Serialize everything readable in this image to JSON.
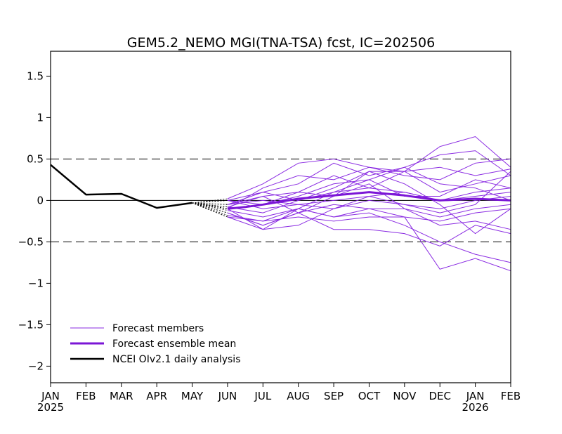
{
  "chart_data": {
    "type": "line",
    "title": "GEM5.2_NEMO MGI(TNA-TSA) fcst, IC=202506",
    "xlabel": "",
    "ylabel": "",
    "ylim": [
      -2.2,
      1.8
    ],
    "yticks": [
      -2,
      -1.5,
      -1,
      -0.5,
      0,
      0.5,
      1,
      1.5
    ],
    "ytick_labels": [
      "−2",
      "−1.5",
      "−1",
      "−0.5",
      "0",
      "0.5",
      "1",
      "1.5"
    ],
    "xlim": [
      0,
      13
    ],
    "x_categories": [
      "JAN",
      "FEB",
      "MAR",
      "APR",
      "MAY",
      "JUN",
      "JUL",
      "AUG",
      "SEP",
      "OCT",
      "NOV",
      "DEC",
      "JAN",
      "FEB"
    ],
    "x_year_labels": [
      {
        "index": 0,
        "label": "2025"
      },
      {
        "index": 12,
        "label": "2026"
      }
    ],
    "reference_lines": [
      {
        "y": 0.5,
        "style": "dashed"
      },
      {
        "y": 0,
        "style": "solid"
      },
      {
        "y": -0.5,
        "style": "dashed"
      }
    ],
    "grid": false,
    "legend_position": "bottom-left",
    "colors": {
      "members": "#8a2be2",
      "ensemble_mean": "#7b16d6",
      "analysis": "#000000"
    },
    "analysis": {
      "name": "NCEI OIv2.1 daily analysis",
      "x": [
        0,
        1,
        2,
        3,
        4
      ],
      "y": [
        0.43,
        0.07,
        0.08,
        -0.09,
        -0.03
      ]
    },
    "ensemble_mean": {
      "name": "Forecast ensemble mean",
      "x": [
        5,
        5.5,
        6,
        7,
        8,
        9,
        10,
        11,
        12,
        13
      ],
      "y": [
        -0.1,
        -0.08,
        -0.05,
        0.02,
        0.06,
        0.1,
        0.06,
        0.0,
        0.02,
        0.0
      ]
    },
    "members_label": "Forecast members",
    "members_x": [
      5,
      6,
      7,
      8,
      9,
      10,
      11,
      12,
      13
    ],
    "members": [
      [
        0.02,
        0.2,
        0.45,
        0.5,
        0.4,
        0.35,
        0.65,
        0.77,
        0.4
      ],
      [
        -0.05,
        0.1,
        0.2,
        0.45,
        0.3,
        0.4,
        0.55,
        0.6,
        0.3
      ],
      [
        -0.1,
        0.15,
        0.3,
        0.25,
        0.4,
        0.3,
        0.25,
        0.45,
        0.5
      ],
      [
        -0.2,
        -0.35,
        -0.1,
        0.1,
        0.15,
        0.35,
        0.4,
        0.3,
        0.38
      ],
      [
        -0.15,
        -0.3,
        -0.15,
        0.05,
        0.35,
        0.35,
        0.1,
        0.2,
        0.3
      ],
      [
        -0.1,
        -0.05,
        0.1,
        0.3,
        0.15,
        0.1,
        0.0,
        0.1,
        0.15
      ],
      [
        -0.05,
        0.0,
        -0.05,
        0.0,
        0.05,
        0.1,
        0.0,
        0.05,
        0.1
      ],
      [
        0.0,
        -0.1,
        -0.05,
        -0.1,
        0.0,
        -0.05,
        -0.1,
        0.0,
        0.05
      ],
      [
        -0.12,
        -0.2,
        -0.1,
        -0.2,
        -0.1,
        -0.1,
        -0.2,
        -0.1,
        -0.05
      ],
      [
        -0.18,
        -0.25,
        -0.2,
        -0.25,
        -0.2,
        -0.2,
        -0.25,
        -0.15,
        -0.1
      ],
      [
        -0.08,
        0.05,
        0.1,
        0.05,
        0.2,
        -0.1,
        -0.3,
        -0.25,
        -0.35
      ],
      [
        -0.15,
        -0.3,
        -0.15,
        -0.35,
        -0.35,
        -0.4,
        -0.55,
        -0.3,
        -0.4
      ],
      [
        -0.2,
        -0.25,
        -0.1,
        -0.2,
        -0.15,
        -0.3,
        -0.5,
        -0.65,
        -0.75
      ],
      [
        -0.05,
        0.05,
        -0.15,
        -0.05,
        -0.1,
        -0.2,
        -0.83,
        -0.7,
        -0.85
      ],
      [
        0.0,
        0.1,
        0.0,
        0.15,
        0.35,
        0.2,
        -0.05,
        -0.4,
        -0.1
      ],
      [
        -0.1,
        -0.35,
        -0.3,
        -0.1,
        0.05,
        -0.05,
        -0.15,
        -0.05,
        0.35
      ],
      [
        0.0,
        -0.05,
        0.05,
        0.2,
        0.25,
        0.05,
        0.05,
        0.25,
        0.15
      ],
      [
        -0.08,
        -0.15,
        0.0,
        0.1,
        0.25,
        0.4,
        0.2,
        0.15,
        0.0
      ]
    ]
  }
}
